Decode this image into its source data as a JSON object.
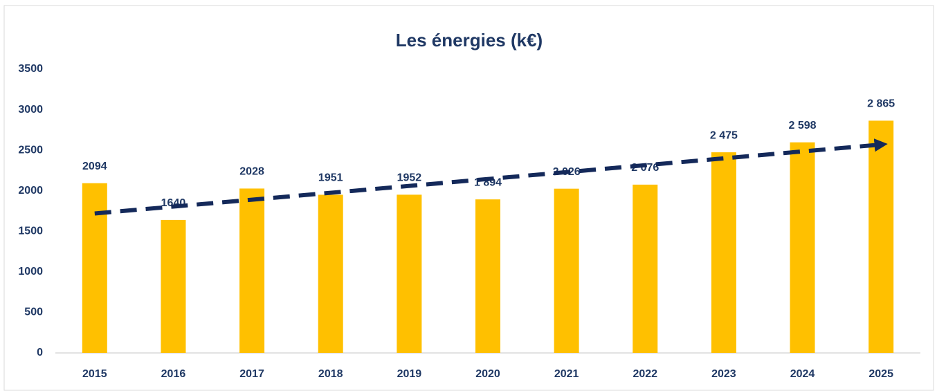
{
  "chart_data": {
    "type": "bar",
    "title": "Les énergies (k€)",
    "categories": [
      "2015",
      "2016",
      "2017",
      "2018",
      "2019",
      "2020",
      "2021",
      "2022",
      "2023",
      "2024",
      "2025"
    ],
    "values": [
      2094,
      1640,
      2028,
      1951,
      1952,
      1894,
      2026,
      2076,
      2475,
      2598,
      2865
    ],
    "value_labels": [
      "2094",
      "1640",
      "2028",
      "1951",
      "1952",
      "1 894",
      "2 026",
      "2 076",
      "2 475",
      "2 598",
      "2 865"
    ],
    "color": "#FFC000",
    "trendline": "linear",
    "trendline_color": "#14295a",
    "ylim": [
      0,
      3500
    ],
    "yticks": [
      0,
      500,
      1000,
      1500,
      2000,
      2500,
      3000,
      3500
    ],
    "grid": false
  }
}
